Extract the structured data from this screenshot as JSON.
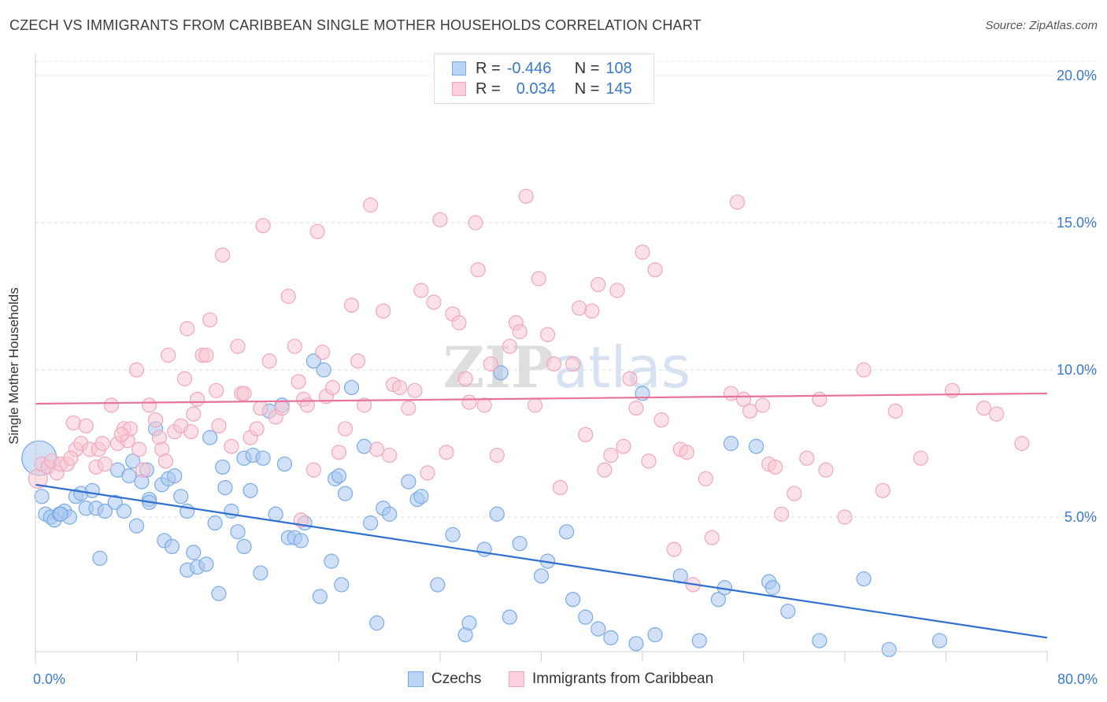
{
  "title": "CZECH VS IMMIGRANTS FROM CARIBBEAN SINGLE MOTHER HOUSEHOLDS CORRELATION CHART",
  "source": "Source: ZipAtlas.com",
  "watermark": "ZIPatlas",
  "legend": {
    "r_label": "R =",
    "n_label": "N =",
    "rows": [
      {
        "r": "-0.446",
        "n": "108"
      },
      {
        "r": "0.034",
        "n": "145"
      }
    ]
  },
  "chart_data": {
    "type": "scatter",
    "ylabel": "Single Mother Households",
    "xlim": [
      0,
      80
    ],
    "ylim": [
      0,
      20.5
    ],
    "x_tick_labels": [
      "0.0%",
      "80.0%"
    ],
    "y_ticks": [
      5,
      10,
      15,
      20
    ],
    "y_tick_labels": [
      "5.0%",
      "10.0%",
      "15.0%",
      "20.0%"
    ],
    "grid": true,
    "legend_position": "top-center",
    "series": [
      {
        "name": "Czechs",
        "color": "#7aaae6",
        "fill": "#a9c8f0",
        "trend": {
          "x0": 0,
          "y0": 6.1,
          "x1": 80,
          "y1": 0.9
        },
        "points": [
          [
            0.3,
            7.0
          ],
          [
            0.5,
            5.7
          ],
          [
            0.8,
            5.1
          ],
          [
            1.2,
            5.0
          ],
          [
            1.5,
            4.9
          ],
          [
            1.9,
            5.1
          ],
          [
            2.3,
            5.2
          ],
          [
            2.7,
            5.0
          ],
          [
            3.2,
            5.7
          ],
          [
            3.6,
            5.8
          ],
          [
            4.0,
            5.3
          ],
          [
            4.5,
            5.9
          ],
          [
            4.8,
            5.3
          ],
          [
            5.1,
            3.6
          ],
          [
            5.5,
            5.2
          ],
          [
            6.3,
            5.5
          ],
          [
            6.5,
            6.6
          ],
          [
            7.0,
            5.2
          ],
          [
            7.4,
            6.4
          ],
          [
            7.7,
            6.9
          ],
          [
            8.0,
            4.7
          ],
          [
            8.4,
            6.2
          ],
          [
            8.8,
            6.6
          ],
          [
            9.0,
            5.6
          ],
          [
            9.5,
            8.0
          ],
          [
            10.0,
            6.1
          ],
          [
            10.2,
            4.2
          ],
          [
            10.5,
            6.3
          ],
          [
            10.8,
            4.0
          ],
          [
            11.0,
            6.4
          ],
          [
            11.5,
            5.7
          ],
          [
            12.0,
            3.2
          ],
          [
            12.0,
            5.2
          ],
          [
            12.5,
            3.8
          ],
          [
            12.8,
            3.3
          ],
          [
            13.5,
            3.4
          ],
          [
            13.8,
            7.7
          ],
          [
            14.2,
            4.8
          ],
          [
            14.5,
            2.4
          ],
          [
            14.8,
            6.7
          ],
          [
            15.5,
            5.2
          ],
          [
            16.0,
            4.5
          ],
          [
            16.5,
            4.0
          ],
          [
            16.5,
            7.0
          ],
          [
            17.0,
            5.9
          ],
          [
            17.2,
            7.1
          ],
          [
            17.8,
            3.1
          ],
          [
            18.5,
            8.6
          ],
          [
            19.0,
            5.1
          ],
          [
            19.5,
            8.8
          ],
          [
            19.7,
            6.8
          ],
          [
            20.0,
            4.3
          ],
          [
            20.5,
            4.3
          ],
          [
            21.0,
            4.2
          ],
          [
            21.3,
            4.8
          ],
          [
            22.0,
            10.3
          ],
          [
            22.5,
            2.3
          ],
          [
            22.8,
            10.0
          ],
          [
            23.4,
            3.5
          ],
          [
            23.7,
            6.3
          ],
          [
            24.2,
            2.7
          ],
          [
            24.5,
            5.8
          ],
          [
            25.0,
            9.4
          ],
          [
            26.0,
            7.4
          ],
          [
            26.5,
            4.8
          ],
          [
            27.0,
            1.4
          ],
          [
            27.5,
            5.3
          ],
          [
            29.5,
            6.2
          ],
          [
            30.2,
            5.6
          ],
          [
            30.5,
            5.7
          ],
          [
            31.8,
            2.7
          ],
          [
            33.0,
            4.4
          ],
          [
            34.0,
            1.0
          ],
          [
            34.3,
            1.4
          ],
          [
            35.5,
            3.9
          ],
          [
            36.5,
            5.1
          ],
          [
            36.8,
            9.9
          ],
          [
            37.5,
            1.6
          ],
          [
            38.3,
            4.1
          ],
          [
            40.0,
            3.0
          ],
          [
            40.5,
            3.5
          ],
          [
            42.0,
            4.5
          ],
          [
            42.5,
            2.2
          ],
          [
            43.5,
            1.6
          ],
          [
            44.5,
            1.2
          ],
          [
            45.5,
            0.9
          ],
          [
            47.5,
            0.7
          ],
          [
            48.0,
            9.2
          ],
          [
            49.0,
            1.0
          ],
          [
            51.0,
            3.0
          ],
          [
            52.5,
            0.8
          ],
          [
            54.0,
            2.2
          ],
          [
            54.5,
            2.6
          ],
          [
            55.0,
            7.5
          ],
          [
            57.0,
            7.4
          ],
          [
            58.0,
            2.8
          ],
          [
            58.3,
            2.6
          ],
          [
            59.5,
            1.8
          ],
          [
            62.0,
            0.8
          ],
          [
            65.5,
            2.9
          ],
          [
            67.5,
            0.5
          ],
          [
            71.5,
            0.8
          ],
          [
            2.0,
            5.1
          ],
          [
            9.0,
            5.5
          ],
          [
            15.0,
            6.0
          ],
          [
            24.0,
            6.4
          ],
          [
            18.0,
            7.0
          ],
          [
            28.0,
            5.1
          ]
        ]
      },
      {
        "name": "Immigrants from Caribbean",
        "color": "#f0a7bd",
        "fill": "#f7c6d4",
        "trend": {
          "x0": 0,
          "y0": 8.85,
          "x1": 80,
          "y1": 9.2
        },
        "points": [
          [
            0.2,
            6.3
          ],
          [
            0.5,
            6.8
          ],
          [
            1.0,
            6.7
          ],
          [
            1.3,
            6.9
          ],
          [
            1.7,
            6.5
          ],
          [
            2.0,
            6.8
          ],
          [
            2.5,
            6.8
          ],
          [
            3.0,
            8.2
          ],
          [
            3.2,
            7.3
          ],
          [
            3.6,
            7.5
          ],
          [
            4.0,
            8.1
          ],
          [
            4.3,
            7.3
          ],
          [
            4.8,
            6.7
          ],
          [
            5.0,
            7.3
          ],
          [
            5.3,
            7.5
          ],
          [
            5.5,
            6.8
          ],
          [
            6.0,
            8.8
          ],
          [
            6.5,
            7.5
          ],
          [
            7.0,
            8.0
          ],
          [
            7.3,
            7.6
          ],
          [
            7.5,
            8.0
          ],
          [
            8.0,
            10.0
          ],
          [
            8.2,
            7.3
          ],
          [
            8.5,
            6.6
          ],
          [
            9.0,
            8.8
          ],
          [
            9.5,
            8.3
          ],
          [
            9.8,
            7.7
          ],
          [
            10.0,
            7.3
          ],
          [
            10.3,
            6.9
          ],
          [
            10.5,
            10.5
          ],
          [
            11.0,
            7.9
          ],
          [
            11.5,
            8.1
          ],
          [
            11.8,
            9.7
          ],
          [
            12.0,
            11.4
          ],
          [
            12.3,
            7.9
          ],
          [
            12.8,
            9.0
          ],
          [
            13.2,
            10.5
          ],
          [
            13.5,
            10.5
          ],
          [
            13.8,
            11.7
          ],
          [
            14.3,
            9.3
          ],
          [
            14.5,
            8.1
          ],
          [
            14.8,
            13.9
          ],
          [
            15.5,
            7.4
          ],
          [
            16.0,
            10.8
          ],
          [
            16.3,
            9.2
          ],
          [
            16.5,
            9.2
          ],
          [
            17.0,
            7.7
          ],
          [
            17.5,
            8.0
          ],
          [
            17.8,
            8.7
          ],
          [
            18.0,
            14.9
          ],
          [
            18.5,
            10.3
          ],
          [
            19.0,
            8.4
          ],
          [
            19.5,
            8.7
          ],
          [
            20.0,
            12.5
          ],
          [
            20.5,
            10.8
          ],
          [
            21.0,
            4.9
          ],
          [
            21.2,
            9.0
          ],
          [
            21.5,
            8.8
          ],
          [
            22.0,
            6.6
          ],
          [
            22.3,
            14.7
          ],
          [
            22.7,
            10.6
          ],
          [
            23.0,
            9.1
          ],
          [
            23.5,
            9.4
          ],
          [
            24.0,
            7.2
          ],
          [
            24.5,
            8.0
          ],
          [
            25.0,
            12.2
          ],
          [
            25.5,
            10.3
          ],
          [
            26.0,
            8.8
          ],
          [
            26.5,
            15.6
          ],
          [
            27.0,
            7.3
          ],
          [
            27.5,
            12.0
          ],
          [
            28.0,
            7.1
          ],
          [
            28.3,
            9.5
          ],
          [
            28.8,
            9.4
          ],
          [
            29.5,
            8.7
          ],
          [
            30.0,
            9.3
          ],
          [
            30.5,
            12.7
          ],
          [
            31.0,
            6.5
          ],
          [
            31.5,
            12.3
          ],
          [
            32.0,
            15.1
          ],
          [
            32.5,
            7.2
          ],
          [
            33.0,
            11.9
          ],
          [
            33.5,
            11.6
          ],
          [
            34.0,
            9.7
          ],
          [
            34.3,
            8.9
          ],
          [
            34.8,
            15.0
          ],
          [
            35.0,
            13.4
          ],
          [
            35.5,
            8.8
          ],
          [
            36.0,
            10.2
          ],
          [
            36.5,
            7.1
          ],
          [
            37.5,
            10.8
          ],
          [
            38.0,
            11.6
          ],
          [
            38.3,
            11.3
          ],
          [
            38.8,
            15.9
          ],
          [
            39.5,
            8.8
          ],
          [
            39.8,
            13.1
          ],
          [
            40.5,
            11.2
          ],
          [
            41.0,
            10.2
          ],
          [
            41.5,
            6.0
          ],
          [
            42.5,
            10.2
          ],
          [
            43.0,
            12.1
          ],
          [
            43.5,
            7.8
          ],
          [
            44.0,
            12.0
          ],
          [
            44.5,
            12.9
          ],
          [
            45.0,
            6.6
          ],
          [
            45.5,
            7.1
          ],
          [
            46.0,
            12.7
          ],
          [
            46.5,
            7.4
          ],
          [
            47.0,
            9.7
          ],
          [
            47.5,
            8.7
          ],
          [
            48.0,
            14.0
          ],
          [
            48.5,
            6.9
          ],
          [
            49.0,
            13.4
          ],
          [
            49.5,
            8.3
          ],
          [
            50.5,
            3.9
          ],
          [
            51.0,
            7.3
          ],
          [
            51.5,
            7.2
          ],
          [
            52.0,
            2.7
          ],
          [
            53.0,
            6.3
          ],
          [
            53.5,
            4.3
          ],
          [
            55.0,
            9.2
          ],
          [
            55.5,
            15.7
          ],
          [
            56.0,
            9.0
          ],
          [
            56.5,
            8.6
          ],
          [
            57.5,
            8.8
          ],
          [
            58.0,
            6.8
          ],
          [
            58.5,
            6.7
          ],
          [
            59.0,
            5.1
          ],
          [
            60.0,
            5.8
          ],
          [
            61.0,
            7.0
          ],
          [
            62.0,
            9.0
          ],
          [
            62.5,
            6.6
          ],
          [
            64.0,
            5.0
          ],
          [
            65.5,
            10.0
          ],
          [
            67.0,
            5.9
          ],
          [
            68.0,
            8.6
          ],
          [
            70.0,
            7.0
          ],
          [
            72.5,
            9.3
          ],
          [
            75.0,
            8.7
          ],
          [
            76.0,
            8.5
          ],
          [
            78.0,
            7.5
          ],
          [
            2.8,
            7.0
          ],
          [
            6.8,
            7.8
          ],
          [
            12.5,
            8.5
          ],
          [
            20.8,
            9.6
          ]
        ]
      }
    ]
  }
}
